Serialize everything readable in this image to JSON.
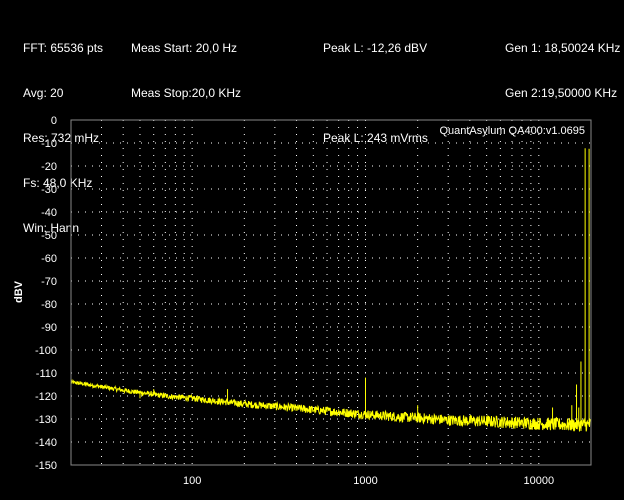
{
  "info": {
    "col1": [
      "FFT: 65536 pts",
      "Avg: 20",
      "Res: 732 mHz",
      "Fs: 48,0 KHz",
      "Win: Hann"
    ],
    "col2": [
      "Meas Start: 20,0 Hz",
      "Meas Stop:20,0 KHz"
    ],
    "col3": [
      "Peak L: -12,26 dBV",
      "",
      "Peak L: 243 mVrms"
    ],
    "col4": [
      "Gen 1: 18,50024 KHz",
      "Gen 2:19,50000 KHz"
    ]
  },
  "colors": {
    "background": "#000000",
    "trace": "#ffff00",
    "grid": "#ffffff",
    "watermark": "#9a9a9a"
  },
  "chart_data": {
    "type": "line",
    "title": "",
    "watermark": "QuantAsylum QA400:v1.0695",
    "ylabel": "dBV",
    "xlabel": "",
    "xscale": "log",
    "xlim": [
      20,
      20000
    ],
    "ylim": [
      -150,
      0
    ],
    "grid": true,
    "x_ticks": [
      100,
      1000,
      10000
    ],
    "x_tick_labels": [
      "100",
      "1000",
      "10000"
    ],
    "y_ticks": [
      0,
      -10,
      -20,
      -30,
      -40,
      -50,
      -60,
      -70,
      -80,
      -90,
      -100,
      -110,
      -120,
      -130,
      -140,
      -150
    ],
    "y_tick_labels": [
      "0",
      "-10",
      "-20",
      "-30",
      "-40",
      "-50",
      "-60",
      "-70",
      "-80",
      "-90",
      "-100",
      "-110",
      "-120",
      "-130",
      "-140",
      "-150"
    ],
    "series": [
      {
        "x": [
          20,
          25,
          30,
          40,
          50,
          70,
          100,
          150,
          200,
          300,
          500,
          700,
          1000,
          1500,
          2000,
          3000,
          5000,
          7000,
          10000,
          15000,
          20000
        ],
        "y": [
          -114,
          -115,
          -116,
          -117.5,
          -118.5,
          -120,
          -121,
          -122.5,
          -123.5,
          -124.5,
          -126,
          -127,
          -128,
          -129,
          -129.5,
          -130.5,
          -131,
          -131.5,
          -132,
          -132.5,
          -132.5
        ]
      }
    ],
    "peaks": [
      {
        "x": 18500,
        "y": -12.3
      },
      {
        "x": 19500,
        "y": -12.5
      },
      {
        "x": 17500,
        "y": -105
      },
      {
        "x": 16500,
        "y": -115
      },
      {
        "x": 15500,
        "y": -124
      },
      {
        "x": 1000,
        "y": -112
      },
      {
        "x": 2000,
        "y": -124
      },
      {
        "x": 12000,
        "y": -125
      },
      {
        "x": 17000,
        "y": -125
      },
      {
        "x": 160,
        "y": -117
      },
      {
        "x": 60,
        "y": -117
      },
      {
        "x": 50,
        "y": -121
      }
    ]
  }
}
